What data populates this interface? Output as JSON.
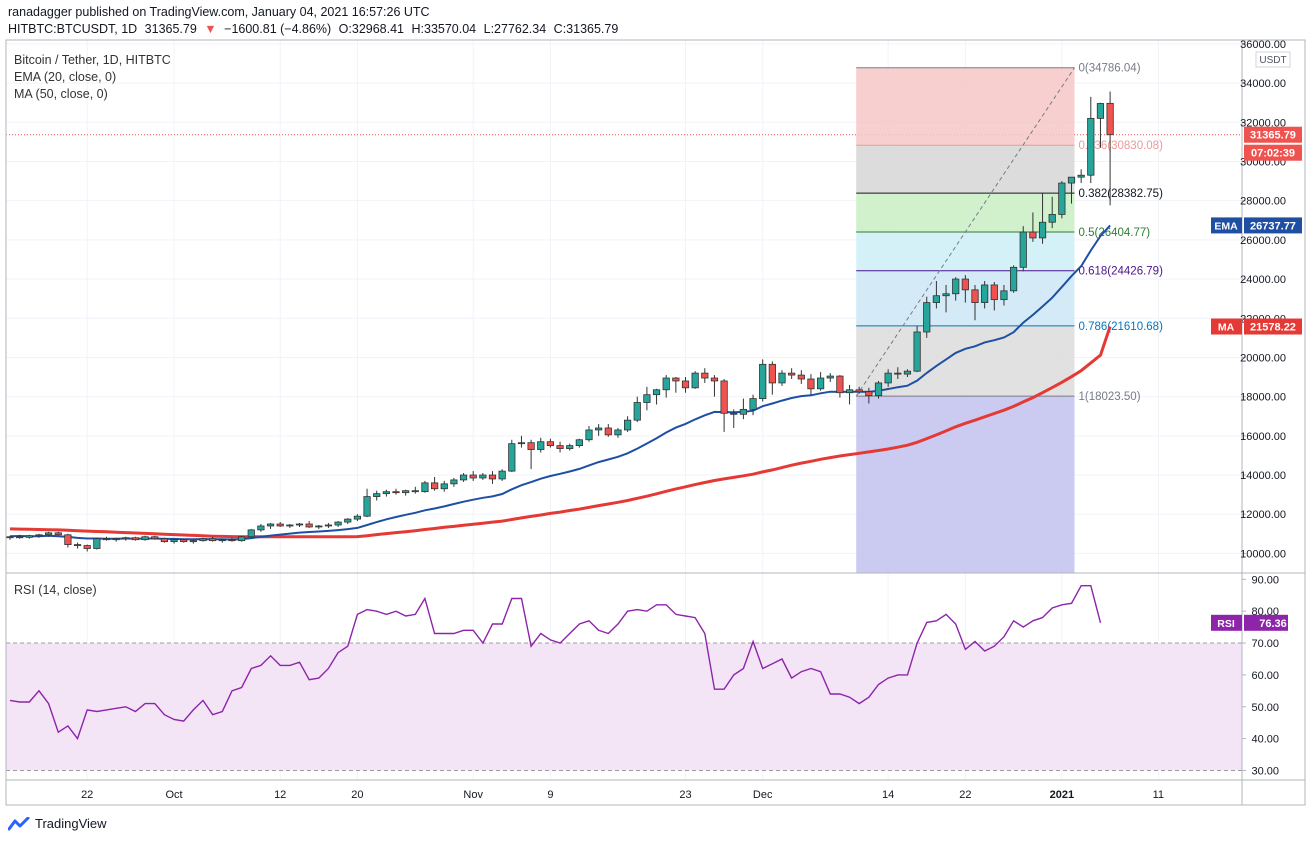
{
  "header": {
    "publish_line": "ranadagger published on TradingView.com, January 04, 2021 16:57:26 UTC",
    "symbol": "HITBTC:BTCUSDT, 1D",
    "last": "31365.79",
    "change": "−1600.81 (−4.86%)",
    "open": "O:32968.41",
    "high": "H:33570.04",
    "low": "L:27762.34",
    "close": "C:31365.79"
  },
  "legend": {
    "title": "Bitcoin / Tether, 1D, HITBTC",
    "ema": "EMA (20, close, 0)",
    "ma": "MA (50, close, 0)",
    "rsi": "RSI (14, close)"
  },
  "branding": {
    "logo_text": "TradingView"
  },
  "colors": {
    "up": "#26a69a",
    "down": "#ef5350",
    "ema": "#1e4fa3",
    "ma": "#e53935",
    "rsi": "#8e24aa",
    "rsi_band": "#f3e5f5",
    "grid": "#f0f3fa",
    "axis_text": "#131722"
  },
  "chart_data": {
    "type": "candlestick",
    "price_axis": {
      "unit": "USDT",
      "ticks": [
        "36000.00",
        "34000.00",
        "32000.00",
        "30000.00",
        "28000.00",
        "26000.00",
        "24000.00",
        "22000.00",
        "20000.00",
        "18000.00",
        "16000.00",
        "14000.00",
        "12000.00",
        "10000.00"
      ],
      "ylim": [
        9000,
        36200
      ]
    },
    "time_axis": {
      "ticks": [
        {
          "label": "22",
          "i": 8
        },
        {
          "label": "Oct",
          "i": 17
        },
        {
          "label": "12",
          "i": 28
        },
        {
          "label": "20",
          "i": 36
        },
        {
          "label": "Nov",
          "i": 48
        },
        {
          "label": "9",
          "i": 56
        },
        {
          "label": "23",
          "i": 70
        },
        {
          "label": "Dec",
          "i": 78
        },
        {
          "label": "14",
          "i": 91
        },
        {
          "label": "22",
          "i": 99
        },
        {
          "label": "2021",
          "i": 109
        },
        {
          "label": "11",
          "i": 119
        }
      ]
    },
    "series_labels": {
      "price": "31365.79",
      "countdown": "07:02:39",
      "ema_tag": "EMA",
      "ema_value": "26737.77",
      "ma_tag": "MA",
      "ma_value": "21578.22",
      "rsi_tag": "RSI",
      "rsi_value": "76.36"
    },
    "fib": {
      "range_i": [
        88,
        110
      ],
      "levels": [
        {
          "label": "0(34786.04)",
          "value": 34786.04,
          "color": "#787b86",
          "fill": "#f4c7c6"
        },
        {
          "label": "0.236(30830.08)",
          "value": 30830.08,
          "color": "#ef9a9a",
          "fill": "#d6d6d6"
        },
        {
          "label": "0.382(28382.75)",
          "value": 28382.75,
          "color": "#131722",
          "fill": "#c8efc2"
        },
        {
          "label": "0.5(26404.77)",
          "value": 26404.77,
          "color": "#2e7d32",
          "fill": "#cdeef7"
        },
        {
          "label": "0.618(24426.79)",
          "value": 24426.79,
          "color": "#4a148c",
          "fill": "#cce6f6"
        },
        {
          "label": "0.786(21610.68)",
          "value": 21610.68,
          "color": "#0277bd",
          "fill": "#dcdcdc"
        },
        {
          "label": "1(18023.50)",
          "value": 18023.5,
          "color": "#787b86",
          "fill": "#c2c2ee"
        }
      ]
    },
    "candles": [
      [
        10800,
        10900,
        10700,
        10850
      ],
      [
        10850,
        10950,
        10750,
        10820
      ],
      [
        10820,
        10950,
        10750,
        10900
      ],
      [
        10900,
        11000,
        10800,
        10950
      ],
      [
        10950,
        11100,
        10850,
        11050
      ],
      [
        11050,
        11100,
        10900,
        10950
      ],
      [
        10950,
        11000,
        10300,
        10450
      ],
      [
        10450,
        10550,
        10250,
        10400
      ],
      [
        10400,
        10450,
        10100,
        10250
      ],
      [
        10250,
        10800,
        10200,
        10750
      ],
      [
        10750,
        10850,
        10650,
        10700
      ],
      [
        10700,
        10800,
        10600,
        10750
      ],
      [
        10750,
        10850,
        10650,
        10800
      ],
      [
        10800,
        10850,
        10650,
        10700
      ],
      [
        10700,
        10900,
        10650,
        10850
      ],
      [
        10850,
        10900,
        10700,
        10750
      ],
      [
        10750,
        10800,
        10550,
        10600
      ],
      [
        10600,
        10750,
        10500,
        10700
      ],
      [
        10700,
        10750,
        10550,
        10600
      ],
      [
        10600,
        10700,
        10500,
        10650
      ],
      [
        10650,
        10800,
        10600,
        10750
      ],
      [
        10750,
        10850,
        10600,
        10650
      ],
      [
        10650,
        10750,
        10550,
        10700
      ],
      [
        10700,
        10800,
        10600,
        10650
      ],
      [
        10650,
        10900,
        10600,
        10850
      ],
      [
        10850,
        11250,
        10800,
        11200
      ],
      [
        11200,
        11500,
        11100,
        11400
      ],
      [
        11400,
        11550,
        11250,
        11500
      ],
      [
        11500,
        11600,
        11350,
        11400
      ],
      [
        11400,
        11500,
        11300,
        11450
      ],
      [
        11450,
        11550,
        11350,
        11500
      ],
      [
        11500,
        11650,
        11300,
        11350
      ],
      [
        11350,
        11450,
        11250,
        11400
      ],
      [
        11400,
        11550,
        11300,
        11450
      ],
      [
        11450,
        11650,
        11350,
        11600
      ],
      [
        11600,
        11800,
        11500,
        11750
      ],
      [
        11750,
        12000,
        11650,
        11900
      ],
      [
        11900,
        13300,
        11850,
        12900
      ],
      [
        12900,
        13200,
        12700,
        13050
      ],
      [
        13050,
        13250,
        12900,
        13150
      ],
      [
        13150,
        13300,
        13000,
        13100
      ],
      [
        13100,
        13250,
        12950,
        13200
      ],
      [
        13200,
        13400,
        13050,
        13150
      ],
      [
        13150,
        13700,
        13100,
        13600
      ],
      [
        13600,
        13900,
        13200,
        13300
      ],
      [
        13300,
        13700,
        13150,
        13550
      ],
      [
        13550,
        13850,
        13400,
        13750
      ],
      [
        13750,
        14100,
        13650,
        14000
      ],
      [
        14000,
        14200,
        13700,
        13850
      ],
      [
        13850,
        14100,
        13750,
        14000
      ],
      [
        14000,
        14200,
        13550,
        13800
      ],
      [
        13800,
        14300,
        13700,
        14200
      ],
      [
        14200,
        15800,
        14150,
        15600
      ],
      [
        15600,
        16000,
        15400,
        15650
      ],
      [
        15650,
        15800,
        14300,
        15300
      ],
      [
        15300,
        15900,
        15150,
        15700
      ],
      [
        15700,
        15850,
        15400,
        15500
      ],
      [
        15500,
        15700,
        15150,
        15350
      ],
      [
        15350,
        15600,
        15250,
        15500
      ],
      [
        15500,
        15850,
        15400,
        15800
      ],
      [
        15800,
        16500,
        15700,
        16300
      ],
      [
        16300,
        16600,
        16000,
        16400
      ],
      [
        16400,
        16600,
        15950,
        16050
      ],
      [
        16050,
        16400,
        15900,
        16300
      ],
      [
        16300,
        17000,
        16200,
        16800
      ],
      [
        16800,
        18000,
        16700,
        17700
      ],
      [
        17700,
        18500,
        17300,
        18100
      ],
      [
        18100,
        18400,
        17600,
        18350
      ],
      [
        18350,
        19100,
        17950,
        18950
      ],
      [
        18950,
        19000,
        18200,
        18800
      ],
      [
        18800,
        19000,
        18200,
        18450
      ],
      [
        18450,
        19300,
        18400,
        19200
      ],
      [
        19200,
        19450,
        18700,
        18950
      ],
      [
        18950,
        19100,
        18000,
        18800
      ],
      [
        18800,
        18900,
        16200,
        17150
      ],
      [
        17150,
        17350,
        16400,
        17100
      ],
      [
        17100,
        17900,
        16850,
        17350
      ],
      [
        17350,
        18100,
        17050,
        17900
      ],
      [
        17900,
        19900,
        17750,
        19650
      ],
      [
        19650,
        19800,
        18100,
        18700
      ],
      [
        18700,
        19350,
        18550,
        19200
      ],
      [
        19200,
        19450,
        18900,
        19100
      ],
      [
        19100,
        19350,
        18650,
        18900
      ],
      [
        18900,
        19150,
        18100,
        18400
      ],
      [
        18400,
        19250,
        18300,
        18950
      ],
      [
        18950,
        19200,
        18750,
        19050
      ],
      [
        19050,
        19100,
        17950,
        18200
      ],
      [
        18200,
        18600,
        17600,
        18350
      ],
      [
        18350,
        18500,
        18150,
        18250
      ],
      [
        18250,
        18450,
        17650,
        18050
      ],
      [
        18050,
        18800,
        17900,
        18700
      ],
      [
        18700,
        19400,
        18500,
        19200
      ],
      [
        19200,
        19500,
        18900,
        19150
      ],
      [
        19150,
        19400,
        19000,
        19300
      ],
      [
        19300,
        21600,
        19250,
        21300
      ],
      [
        21300,
        23100,
        21000,
        22800
      ],
      [
        22800,
        23900,
        22500,
        23150
      ],
      [
        23150,
        23700,
        22300,
        23250
      ],
      [
        23250,
        24100,
        22900,
        24000
      ],
      [
        24000,
        24200,
        22800,
        23450
      ],
      [
        23450,
        23700,
        21900,
        22800
      ],
      [
        22800,
        23900,
        22500,
        23700
      ],
      [
        23700,
        23850,
        22400,
        22950
      ],
      [
        22950,
        23700,
        22650,
        23400
      ],
      [
        23400,
        24700,
        23300,
        24600
      ],
      [
        24600,
        26700,
        24400,
        26400
      ],
      [
        26400,
        27400,
        25900,
        26100
      ],
      [
        26100,
        28400,
        25800,
        26900
      ],
      [
        26900,
        28200,
        26600,
        27300
      ],
      [
        27300,
        29000,
        27100,
        28900
      ],
      [
        28900,
        29200,
        27850,
        29200
      ],
      [
        29200,
        29600,
        28900,
        29300
      ],
      [
        29300,
        33300,
        28900,
        32200
      ],
      [
        32200,
        33000,
        30700,
        32960
      ],
      [
        32968,
        33570,
        27762,
        31366
      ]
    ],
    "ema20": [
      10880,
      10890,
      10880,
      10880,
      10900,
      10880,
      10840,
      10790,
      10760,
      10760,
      10750,
      10750,
      10760,
      10750,
      10760,
      10760,
      10740,
      10740,
      10720,
      10720,
      10730,
      10720,
      10720,
      10710,
      10730,
      10780,
      10840,
      10910,
      10960,
      11010,
      11060,
      11090,
      11120,
      11150,
      11190,
      11240,
      11300,
      11450,
      11600,
      11740,
      11860,
      11970,
      12070,
      12200,
      12290,
      12400,
      12520,
      12640,
      12740,
      12840,
      12910,
      13030,
      13270,
      13480,
      13640,
      13810,
      13950,
      14060,
      14180,
      14310,
      14490,
      14660,
      14790,
      14930,
      15110,
      15350,
      15610,
      15880,
      16170,
      16420,
      16610,
      16840,
      17050,
      17220,
      17210,
      17200,
      17220,
      17280,
      17510,
      17650,
      17800,
      17930,
      18030,
      18070,
      18170,
      18250,
      18240,
      18250,
      18250,
      18240,
      18300,
      18390,
      18480,
      18560,
      18820,
      19210,
      19570,
      19900,
      20230,
      20440,
      20570,
      20770,
      20880,
      21020,
      21290,
      21780,
      22170,
      22600,
      23050,
      23600,
      24150,
      24660,
      25460,
      26200,
      26737.77
    ],
    "ma50": [
      11250,
      11240,
      11230,
      11220,
      11210,
      11200,
      11180,
      11160,
      11140,
      11120,
      11100,
      11080,
      11060,
      11040,
      11020,
      11000,
      10980,
      10960,
      10940,
      10920,
      10900,
      10880,
      10870,
      10860,
      10855,
      10850,
      10850,
      10850,
      10850,
      10850,
      10850,
      10850,
      10850,
      10850,
      10850,
      10850,
      10860,
      10900,
      10960,
      11010,
      11060,
      11110,
      11160,
      11220,
      11270,
      11330,
      11380,
      11440,
      11490,
      11540,
      11600,
      11650,
      11730,
      11810,
      11890,
      11960,
      12040,
      12110,
      12190,
      12260,
      12350,
      12440,
      12520,
      12610,
      12700,
      12810,
      12920,
      13040,
      13170,
      13290,
      13400,
      13510,
      13620,
      13720,
      13800,
      13880,
      13960,
      14040,
      14160,
      14260,
      14380,
      14500,
      14610,
      14700,
      14800,
      14890,
      14970,
      15040,
      15110,
      15180,
      15250,
      15330,
      15420,
      15520,
      15670,
      15860,
      16050,
      16250,
      16460,
      16640,
      16800,
      16970,
      17140,
      17310,
      17500,
      17730,
      17950,
      18200,
      18460,
      18730,
      19020,
      19330,
      19720,
      20120,
      21578.22
    ],
    "rsi_axis": {
      "ticks": [
        "90.00",
        "80.00",
        "70.00",
        "60.00",
        "50.00",
        "40.00",
        "30.00"
      ],
      "ylim": [
        27,
        92
      ],
      "band": [
        30,
        70
      ]
    },
    "rsi": [
      52,
      51.5,
      51.5,
      55,
      51,
      42,
      44,
      40,
      49,
      48.5,
      49,
      49.5,
      50,
      48.5,
      51,
      51,
      47.5,
      46,
      45.5,
      49,
      52,
      47.5,
      48.5,
      55,
      56,
      62,
      63,
      66,
      63,
      63,
      64,
      58.5,
      59,
      62,
      67,
      69,
      79,
      80.5,
      80,
      79,
      80,
      78.5,
      79,
      84,
      73,
      73,
      73,
      74,
      74,
      70,
      76,
      76,
      84,
      84,
      69,
      73,
      71,
      70,
      73,
      76,
      77,
      74,
      73,
      76,
      80,
      80.5,
      80,
      82,
      82,
      79,
      78.5,
      78,
      73,
      55.5,
      55.5,
      60,
      62,
      70.5,
      62,
      63.5,
      65,
      59,
      61,
      62,
      61,
      54,
      54,
      53,
      51,
      53,
      57,
      59,
      60,
      60,
      70,
      76.5,
      77,
      79,
      76,
      68,
      70.5,
      67.5,
      69,
      72,
      77,
      75,
      77,
      78,
      81,
      82,
      82.5,
      88,
      88,
      76.36
    ]
  }
}
